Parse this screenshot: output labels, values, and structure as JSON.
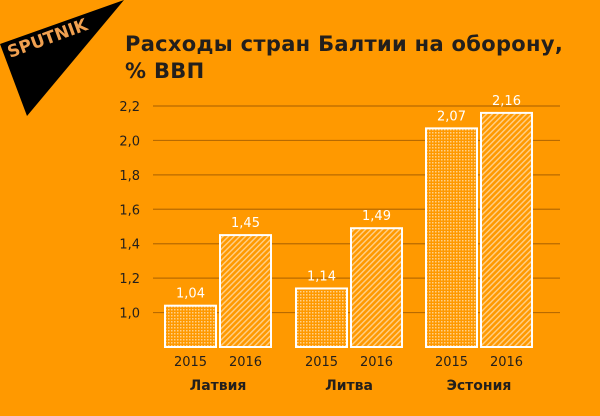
{
  "logo_text": "SPUTNIK",
  "chart_data": {
    "type": "bar",
    "title_line1": "Расходы стран Балтии на оборону,",
    "title_line2": "% ВВП",
    "groups": [
      "Латвия",
      "Литва",
      "Эстония"
    ],
    "years": [
      "2015",
      "2016"
    ],
    "values": [
      [
        1.04,
        1.45
      ],
      [
        1.14,
        1.49
      ],
      [
        2.07,
        2.16
      ]
    ],
    "labels": [
      [
        "1,04",
        "1,45"
      ],
      [
        "1,14",
        "1,49"
      ],
      [
        "2,07",
        "2,16"
      ]
    ],
    "yticks": [
      1.0,
      1.2,
      1.4,
      1.6,
      1.8,
      2.0,
      2.2
    ],
    "ytick_labels": [
      "1,0",
      "1,2",
      "1,4",
      "1,6",
      "1,8",
      "2,0",
      "2,2"
    ],
    "ylim": [
      0.8,
      2.2
    ],
    "grid": true,
    "colors": {
      "background": "#ff9900",
      "text": "#231f1c",
      "bar_stroke": "#ffffff",
      "grid": "#b86a00"
    }
  }
}
